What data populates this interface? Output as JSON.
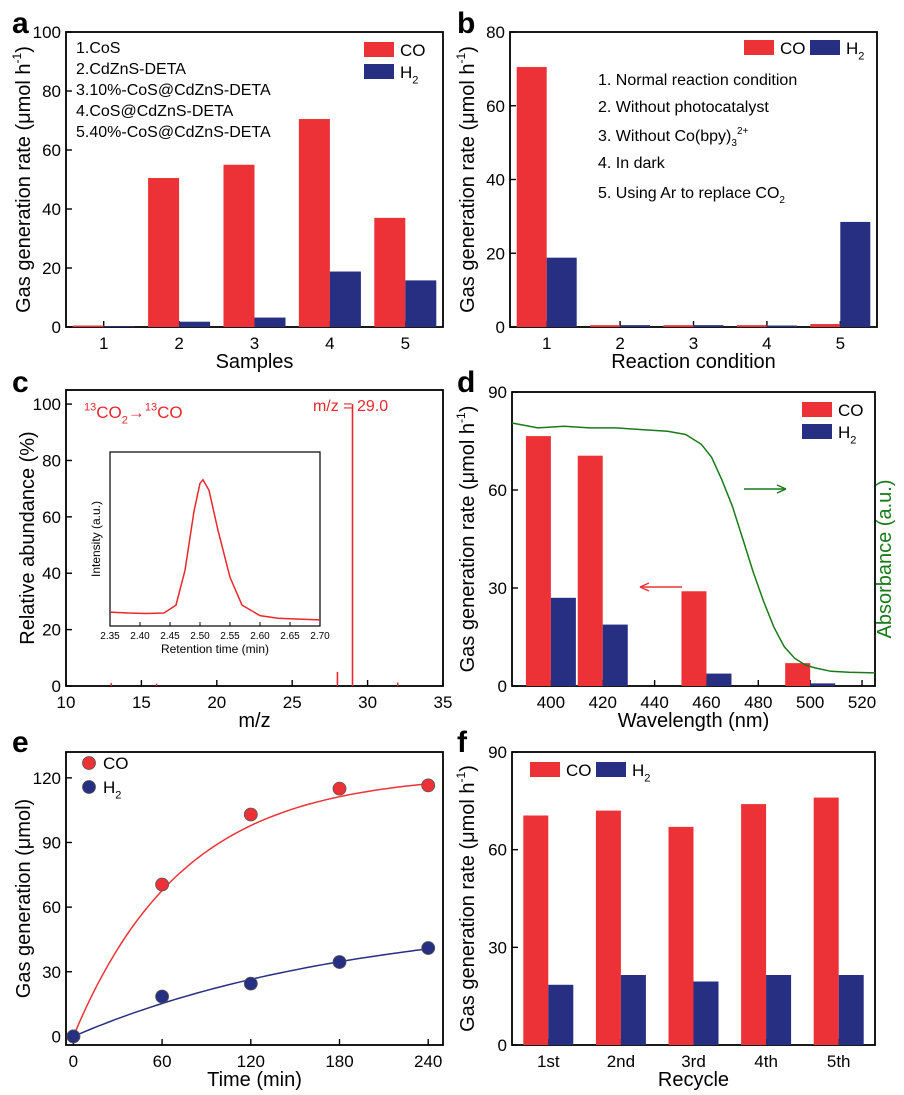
{
  "colors": {
    "co": "#ed3237",
    "h2": "#262f82",
    "absorbance": "#1a7a1a",
    "ms": "#e8282d",
    "axis": "#000000"
  },
  "chart_data": [
    {
      "id": "a",
      "panel_label": "a",
      "type": "bar",
      "xlabel": "Samples",
      "ylabel_main": "Gas generation rate (μmol h",
      "ylabel_sup": "-1",
      "ylabel_tail": ")",
      "categories": [
        "1",
        "2",
        "3",
        "4",
        "5"
      ],
      "ylim": [
        0,
        100
      ],
      "yticks": [
        0,
        20,
        40,
        60,
        80,
        100
      ],
      "series": [
        {
          "name": "CO",
          "label": "CO",
          "values": [
            0.5,
            50.5,
            55,
            70.5,
            37
          ]
        },
        {
          "name": "H2",
          "label": "H",
          "label_sub": "2",
          "values": [
            0.3,
            1.8,
            3.2,
            18.8,
            15.8
          ]
        }
      ],
      "legend": "top-right",
      "notes": [
        "1.CoS",
        "2.CdZnS-DETA",
        "3.10%-CoS@CdZnS-DETA",
        "4.CoS@CdZnS-DETA",
        "5.40%-CoS@CdZnS-DETA"
      ]
    },
    {
      "id": "b",
      "panel_label": "b",
      "type": "bar",
      "xlabel": "Reaction condition",
      "ylabel_main": "Gas generation rate (μmol h",
      "ylabel_sup": "-1",
      "ylabel_tail": ")",
      "categories": [
        "1",
        "2",
        "3",
        "4",
        "5"
      ],
      "ylim": [
        0,
        80
      ],
      "yticks": [
        0,
        20,
        40,
        60,
        80
      ],
      "series": [
        {
          "name": "CO",
          "label": "CO",
          "values": [
            70.5,
            0.5,
            0.5,
            0.5,
            0.8
          ]
        },
        {
          "name": "H2",
          "label": "H",
          "label_sub": "2",
          "values": [
            18.8,
            0.5,
            0.5,
            0.4,
            28.5
          ]
        }
      ],
      "legend": "top-right",
      "conditions": [
        {
          "text": "1. Normal reaction condition"
        },
        {
          "text": "2. Without photocatalyst"
        },
        {
          "text": "3. Without Co(bpy)",
          "sub": "3",
          "sup": "2+"
        },
        {
          "text": "4. In dark"
        },
        {
          "text": "5. Using Ar to replace CO",
          "sub": "2"
        }
      ]
    },
    {
      "id": "c",
      "panel_label": "c",
      "type": "bar",
      "xlabel": "m/z",
      "ylabel": "Relative abundance (%)",
      "xlim": [
        10,
        35
      ],
      "xticks": [
        10,
        15,
        20,
        25,
        30,
        35
      ],
      "ylim": [
        0,
        105
      ],
      "yticks": [
        0,
        20,
        40,
        60,
        80,
        100
      ],
      "peaks": {
        "x": [
          13,
          16,
          28,
          29,
          32
        ],
        "y": [
          1,
          0.8,
          5,
          100,
          1.2
        ]
      },
      "peak_label": "m/z = 29.0",
      "reaction_label": {
        "pre1": "13",
        "t1": "CO",
        "sub1": "2",
        "arrow": "→",
        "pre2": "13",
        "t2": "CO"
      },
      "inset": {
        "type": "line",
        "xlabel": "Retention time (min)",
        "ylabel": "Intensity (a.u.)",
        "xlim": [
          2.35,
          2.7
        ],
        "xticks": [
          "2.35",
          "2.40",
          "2.45",
          "2.50",
          "2.55",
          "2.60",
          "2.65",
          "2.70"
        ],
        "x": [
          2.35,
          2.38,
          2.41,
          2.44,
          2.46,
          2.475,
          2.49,
          2.5,
          2.505,
          2.515,
          2.53,
          2.55,
          2.57,
          2.6,
          2.63,
          2.66,
          2.7
        ],
        "y": [
          0.08,
          0.075,
          0.072,
          0.075,
          0.12,
          0.32,
          0.66,
          0.82,
          0.84,
          0.78,
          0.55,
          0.28,
          0.12,
          0.06,
          0.045,
          0.04,
          0.035
        ]
      }
    },
    {
      "id": "d",
      "panel_label": "d",
      "type": "bar",
      "xlabel": "Wavelength (nm)",
      "ylabel_main": "Gas generation rate (μmol h",
      "ylabel_sup": "-1",
      "ylabel_tail": ")",
      "ylabel_right": "Absorbance (a.u.)",
      "xlim": [
        385,
        525
      ],
      "xticks": [
        400,
        420,
        440,
        460,
        480,
        500,
        520
      ],
      "ylim": [
        0,
        90
      ],
      "yticks": [
        0,
        30,
        60,
        90
      ],
      "categories": [
        400,
        420,
        460,
        500
      ],
      "series": [
        {
          "name": "CO",
          "label": "CO",
          "values": [
            76.5,
            70.5,
            29,
            7
          ]
        },
        {
          "name": "H2",
          "label": "H",
          "label_sub": "2",
          "values": [
            27,
            18.8,
            3.8,
            0.8
          ]
        }
      ],
      "legend": "top-right",
      "absorbance": {
        "x": [
          385,
          395,
          405,
          415,
          425,
          435,
          445,
          452,
          458,
          462,
          466,
          470,
          474,
          478,
          482,
          486,
          490,
          494,
          498,
          502,
          508,
          515,
          525
        ],
        "y": [
          80.5,
          79,
          79.5,
          79,
          79,
          78.5,
          78,
          77,
          74,
          70,
          63,
          55,
          45,
          35,
          26,
          18,
          12,
          8.5,
          6.5,
          5.5,
          4.5,
          4.2,
          4
        ]
      }
    },
    {
      "id": "e",
      "panel_label": "e",
      "type": "scatter",
      "xlabel": "Time (min)",
      "ylabel": "Gas generation (μmol)",
      "xlim": [
        -5,
        250
      ],
      "xticks": [
        0,
        60,
        120,
        180,
        240
      ],
      "ylim": [
        -4,
        132
      ],
      "yticks": [
        0,
        30,
        60,
        90,
        120
      ],
      "series": [
        {
          "name": "CO",
          "label": "CO",
          "x": [
            0,
            60,
            120,
            180,
            240
          ],
          "y": [
            0,
            70.5,
            103,
            115,
            116.5
          ],
          "fit_a": 122,
          "fit_k": 0.0135
        },
        {
          "name": "H2",
          "label": "H",
          "label_sub": "2",
          "x": [
            0,
            60,
            120,
            180,
            240
          ],
          "y": [
            0,
            18.5,
            24.5,
            34.5,
            41
          ],
          "fit_a": 57,
          "fit_k": 0.0052
        }
      ],
      "legend": "top-left"
    },
    {
      "id": "f",
      "panel_label": "f",
      "type": "bar",
      "xlabel": "Recycle",
      "ylabel_main": "Gas generation rate (μmol h",
      "ylabel_sup": "-1",
      "ylabel_tail": ")",
      "categories": [
        "1st",
        "2nd",
        "3rd",
        "4th",
        "5th"
      ],
      "ylim": [
        0,
        90
      ],
      "yticks": [
        0,
        30,
        60,
        90
      ],
      "series": [
        {
          "name": "CO",
          "label": "CO",
          "values": [
            70.5,
            72,
            67,
            74,
            76
          ]
        },
        {
          "name": "H2",
          "label": "H",
          "label_sub": "2",
          "values": [
            18.5,
            21.5,
            19.5,
            21.5,
            21.5
          ]
        }
      ],
      "legend": "top-left"
    }
  ]
}
